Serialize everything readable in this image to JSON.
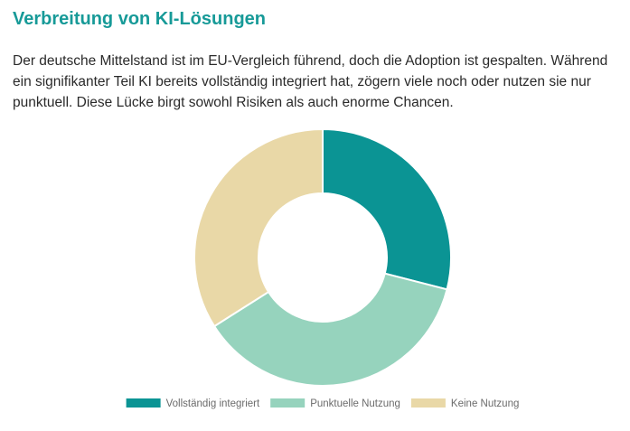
{
  "title": "Verbreitung von KI-Lösungen",
  "description": "Der deutsche Mittelstand ist im EU-Vergleich führend, doch die Adoption ist gespalten. Während ein signifikanter Teil KI bereits vollständig integriert hat, zögern viele noch oder nutzen sie nur punktuell. Diese Lücke birgt sowohl Risiken als auch enorme Chancen.",
  "chart_data": {
    "type": "pie",
    "variant": "doughnut",
    "categories": [
      "Vollständig integriert",
      "Punktuelle Nutzung",
      "Keine Nutzung"
    ],
    "values": [
      29,
      37,
      34
    ],
    "colors": [
      "#0b9494",
      "#96d3bd",
      "#e9d8a7"
    ],
    "legend_position": "bottom",
    "start_angle": "top (12 o'clock), clockwise"
  }
}
